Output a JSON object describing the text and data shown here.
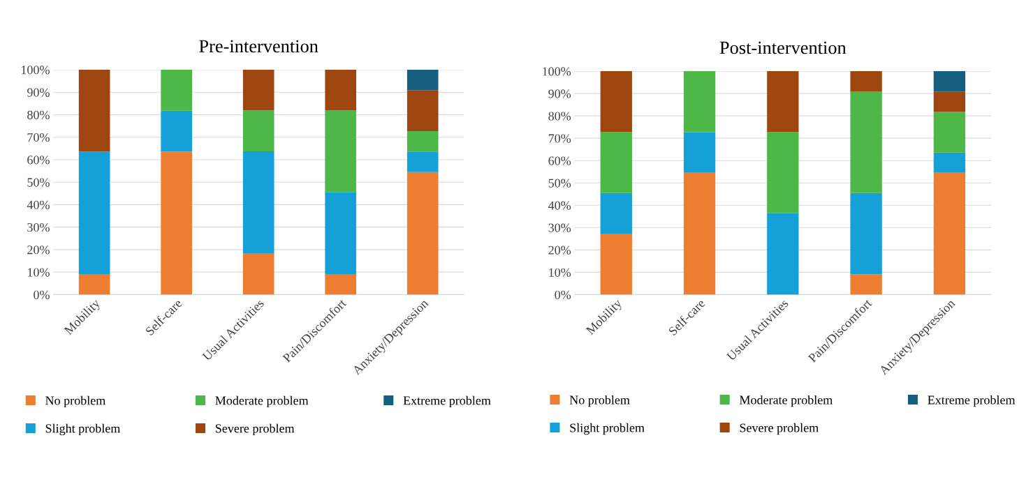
{
  "chart_data": [
    {
      "type": "bar",
      "stacked": true,
      "title": "Pre-intervention",
      "categories": [
        "Mobility",
        "Self-care",
        "Usual Activities",
        "Pain/Discomfort",
        "Anxiety/Depression"
      ],
      "series": [
        {
          "name": "No problem",
          "color": "#ed7d31",
          "values": [
            9.1,
            63.6,
            18.2,
            9.1,
            54.5
          ]
        },
        {
          "name": "Slight problem",
          "color": "#15a0d8",
          "values": [
            54.5,
            18.2,
            45.5,
            36.4,
            9.1
          ]
        },
        {
          "name": "Moderate problem",
          "color": "#4db748",
          "values": [
            0,
            18.2,
            18.2,
            36.4,
            9.1
          ]
        },
        {
          "name": "Severe problem",
          "color": "#9e460f",
          "values": [
            36.4,
            0,
            18.2,
            18.2,
            18.2
          ]
        },
        {
          "name": "Extreme problem",
          "color": "#175f7e",
          "values": [
            0,
            0,
            0,
            0,
            9.1
          ]
        }
      ],
      "ylim": [
        0,
        100
      ],
      "yticks": [
        {
          "value": 0,
          "label": "0%"
        },
        {
          "value": 10,
          "label": "10%"
        },
        {
          "value": 20,
          "label": "20%"
        },
        {
          "value": 30,
          "label": "30%"
        },
        {
          "value": 40,
          "label": "40%"
        },
        {
          "value": 50,
          "label": "50%"
        },
        {
          "value": 60,
          "label": "60%"
        },
        {
          "value": 70,
          "label": "70%"
        },
        {
          "value": 80,
          "label": "80%"
        },
        {
          "value": 90,
          "label": "90%"
        },
        {
          "value": 100,
          "label": "100%"
        }
      ],
      "grid": "y",
      "legend": "bottom"
    },
    {
      "type": "bar",
      "stacked": true,
      "title": "Post-intervention",
      "categories": [
        "Mobility",
        "Self-care",
        "Usual Activities",
        "Pain/Discomfort",
        "Anxiety/Depression"
      ],
      "series": [
        {
          "name": "No problem",
          "color": "#ed7d31",
          "values": [
            27.3,
            54.5,
            0,
            9.1,
            54.5
          ]
        },
        {
          "name": "Slight problem",
          "color": "#15a0d8",
          "values": [
            18.2,
            18.2,
            36.4,
            36.4,
            9.1
          ]
        },
        {
          "name": "Moderate problem",
          "color": "#4db748",
          "values": [
            27.3,
            27.3,
            36.4,
            45.5,
            18.2
          ]
        },
        {
          "name": "Severe problem",
          "color": "#9e460f",
          "values": [
            27.3,
            0,
            27.3,
            9.1,
            9.1
          ]
        },
        {
          "name": "Extreme problem",
          "color": "#175f7e",
          "values": [
            0,
            0,
            0,
            0,
            9.1
          ]
        }
      ],
      "ylim": [
        0,
        100
      ],
      "yticks": [
        {
          "value": 0,
          "label": "0%"
        },
        {
          "value": 10,
          "label": "10%"
        },
        {
          "value": 20,
          "label": "20%"
        },
        {
          "value": 30,
          "label": "30%"
        },
        {
          "value": 40,
          "label": "40%"
        },
        {
          "value": 50,
          "label": "50%"
        },
        {
          "value": 60,
          "label": "60%"
        },
        {
          "value": 70,
          "label": "70%"
        },
        {
          "value": 80,
          "label": "80%"
        },
        {
          "value": 90,
          "label": "90%"
        },
        {
          "value": 100,
          "label": "100%"
        }
      ],
      "grid": "y",
      "legend": "bottom"
    }
  ]
}
